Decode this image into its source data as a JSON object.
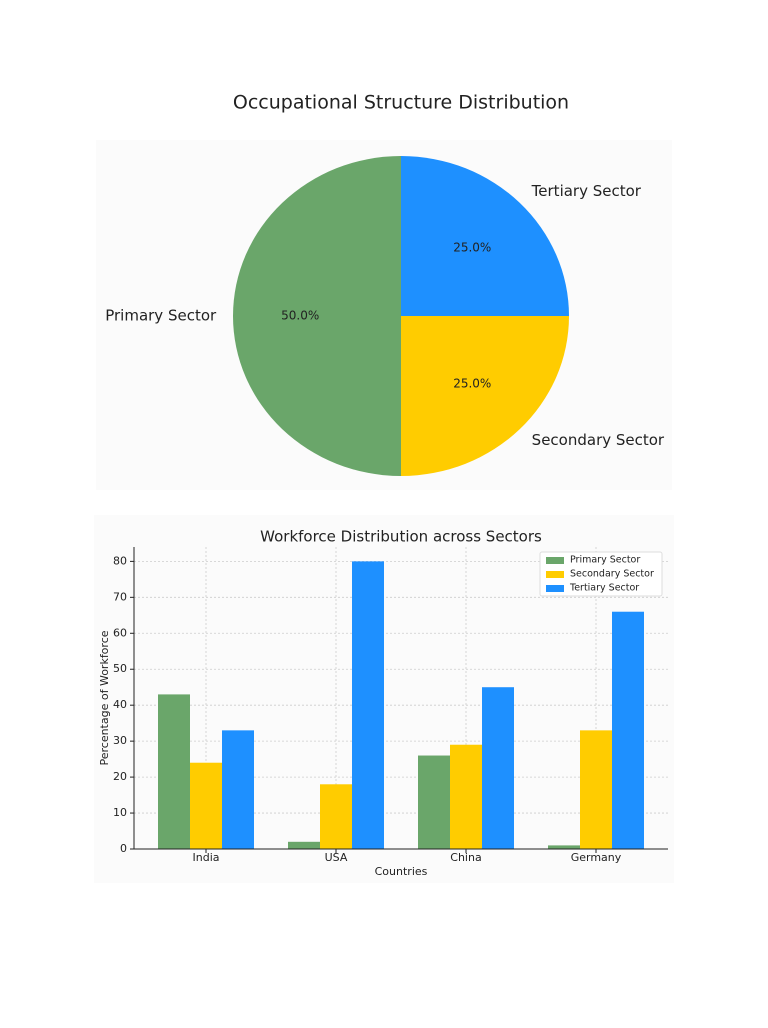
{
  "chart_data": [
    {
      "type": "pie",
      "title": "Occupational Structure Distribution",
      "categories": [
        "Primary Sector",
        "Secondary Sector",
        "Tertiary Sector"
      ],
      "values": [
        50,
        25,
        25
      ],
      "value_labels": [
        "50.0%",
        "25.0%",
        "25.0%"
      ],
      "colors": [
        "#6aa66a",
        "#ffcc00",
        "#1e90ff"
      ]
    },
    {
      "type": "bar",
      "title": "Workforce Distribution across Sectors",
      "x_label": "Countries",
      "y_label": "Percentage of Workforce",
      "categories": [
        "India",
        "USA",
        "China",
        "Germany"
      ],
      "series": [
        {
          "name": "Primary Sector",
          "color": "#6aa66a",
          "values": [
            43,
            2,
            26,
            1
          ]
        },
        {
          "name": "Secondary Sector",
          "color": "#ffcc00",
          "values": [
            24,
            18,
            29,
            33
          ]
        },
        {
          "name": "Tertiary Sector",
          "color": "#1e90ff",
          "values": [
            33,
            80,
            45,
            66
          ]
        }
      ],
      "ylim": [
        0,
        84
      ],
      "yticks": [
        0,
        10,
        20,
        30,
        40,
        50,
        60,
        70,
        80
      ],
      "grid": true,
      "legend": "upper-right"
    }
  ]
}
